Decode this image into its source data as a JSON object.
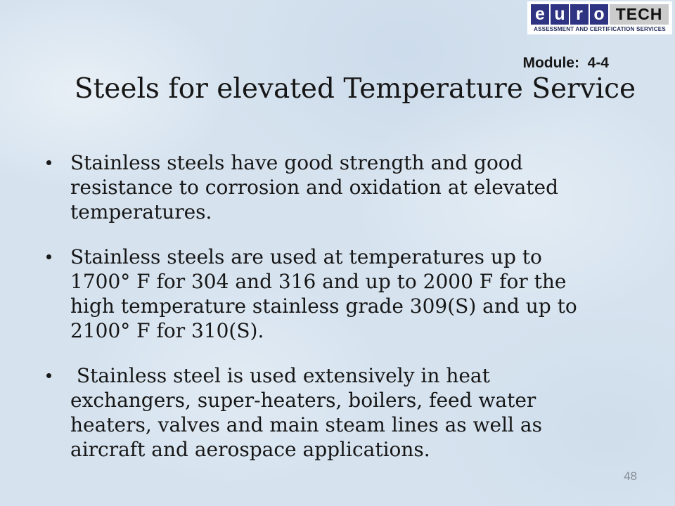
{
  "slide": {
    "module_label": "Module:  4-4",
    "title": "Steels for elevated Temperature Service",
    "bullets": [
      "Stainless steels have good strength and good\nresistance to corrosion and oxidation at elevated\ntemperatures.",
      "Stainless steels are used at temperatures up to\n1700° F for 304 and 316 and up to 2000 F for the\nhigh temperature stainless grade 309(S) and up to\n2100° F for 310(S).",
      " Stainless steel is used extensively in heat\nexchangers, super-heaters, boilers, feed water\nheaters, valves and main steam lines as well as\naircraft and aerospace applications."
    ],
    "page_number": "48",
    "colors": {
      "background": "#d6e3ef",
      "text": "#161616",
      "page_number": "#878d98"
    }
  },
  "logo": {
    "letters": [
      "e",
      "u",
      "r",
      "o"
    ],
    "word": "TECH",
    "tagline": "ASSESSMENT AND CERTIFICATION SERVICES",
    "colors": {
      "panel_bg": "#ffffff",
      "letter_box": "#2e3382",
      "letter_text": "#ffffff",
      "tech_bg": "#cbcbcb",
      "tech_text": "#111111",
      "tagline_text": "#1f2a5a"
    }
  }
}
